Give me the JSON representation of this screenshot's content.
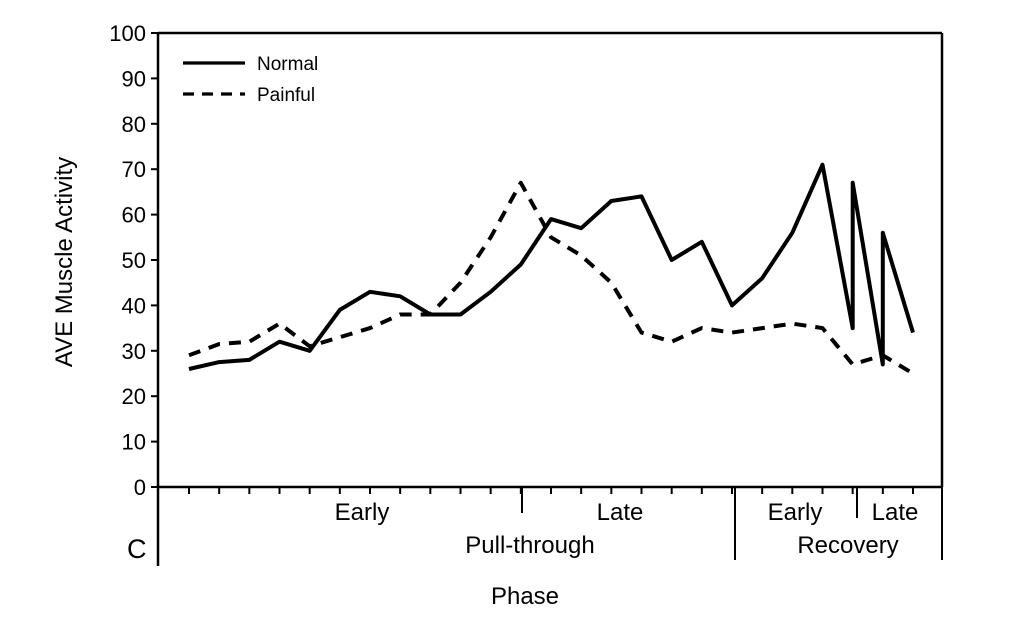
{
  "chart_data": {
    "type": "line",
    "panel_label": "C",
    "xlabel": "Phase",
    "ylabel": "AVE Muscle Activity",
    "ylim": [
      0,
      100
    ],
    "yticks": [
      "0",
      "10",
      "20",
      "30",
      "40",
      "50",
      "60",
      "70",
      "80",
      "90",
      "100"
    ],
    "x_point_count": 25,
    "phase_labels": {
      "pull_early": "Early",
      "pull_late": "Late",
      "pull": "Pull-through",
      "rec_early": "Early",
      "rec_late": "Late",
      "rec": "Recovery"
    },
    "legend_position": "top-left",
    "series": [
      {
        "name": "Normal",
        "style": "solid",
        "x": [
          0,
          1,
          2,
          3,
          4,
          5,
          6,
          7,
          8,
          9,
          10,
          11,
          12,
          13,
          14,
          15,
          16,
          17,
          18,
          19,
          20,
          21,
          22,
          22,
          23,
          23,
          24
        ],
        "values": [
          26,
          27.5,
          28,
          32,
          30,
          39,
          43,
          42,
          38,
          38,
          43,
          49,
          59,
          57,
          63,
          64,
          50,
          54,
          40,
          46,
          56,
          71,
          35,
          67,
          27,
          56,
          34
        ]
      },
      {
        "name": "Painful",
        "style": "dashed",
        "x": [
          0,
          1,
          2,
          3,
          4,
          5,
          6,
          7,
          8,
          9,
          10,
          11,
          12,
          13,
          14,
          15,
          16,
          17,
          18,
          19,
          20,
          21,
          22,
          23,
          24
        ],
        "values": [
          29,
          31.5,
          32,
          36,
          31,
          33,
          35,
          38,
          38,
          45,
          55,
          67,
          55,
          51,
          45,
          34,
          32,
          35,
          34,
          35,
          36,
          35,
          27,
          29,
          25
        ]
      }
    ]
  }
}
